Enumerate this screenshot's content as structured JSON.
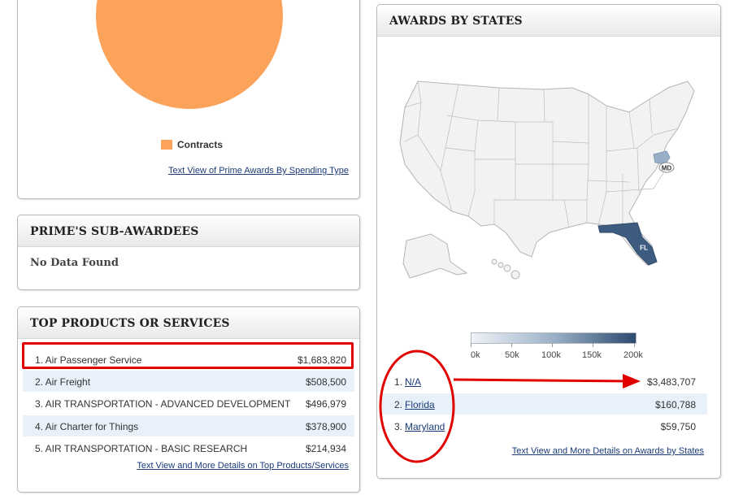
{
  "spending_panel": {
    "legend_label": "Contracts",
    "legend_color": "#fba25b",
    "text_view_link": "Text View of Prime Awards By Spending Type"
  },
  "subawardees_panel": {
    "title": "PRIME'S SUB-AWARDEES",
    "message": "No Data Found"
  },
  "products_panel": {
    "title": "TOP PRODUCTS OR SERVICES",
    "items": [
      {
        "label": "1. Air Passenger Service",
        "value": "$1,683,820"
      },
      {
        "label": "2. Air Freight",
        "value": "$508,500"
      },
      {
        "label": "3. AIR TRANSPORTATION - ADVANCED DEVELOPMENT",
        "value": "$496,979"
      },
      {
        "label": "4. Air Charter for Things",
        "value": "$378,900"
      },
      {
        "label": "5. AIR TRANSPORTATION - BASIC RESEARCH",
        "value": "$214,934"
      }
    ],
    "details_link": "Text View and More Details on Top Products/Services"
  },
  "states_panel": {
    "title": "AWARDS BY STATES",
    "map_labels": {
      "md": "MD",
      "fl": "FL"
    },
    "scale_ticks": [
      "0k",
      "50k",
      "100k",
      "150k",
      "200k"
    ],
    "items": [
      {
        "rank": "1.",
        "state": "N/A",
        "value": "$3,483,707"
      },
      {
        "rank": "2.",
        "state": "Florida",
        "value": "$160,788"
      },
      {
        "rank": "3.",
        "state": "Maryland",
        "value": "$59,750"
      }
    ],
    "details_link": "Text View and More Details on Awards by States"
  },
  "annotation_colors": {
    "highlight": "#e00000"
  }
}
